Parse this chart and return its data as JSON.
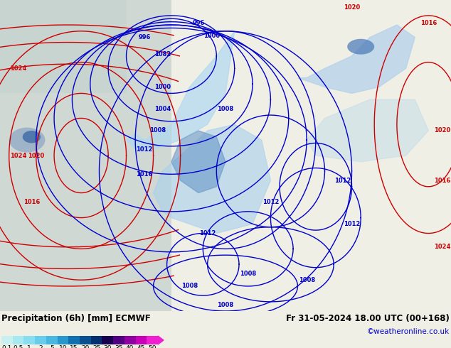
{
  "title_left": "Precipitation (6h) [mm] ECMWF",
  "title_right": "Fr 31-05-2024 18.00 UTC (00+168)",
  "credit": "©weatheronline.co.uk",
  "colorbar_tick_labels": [
    "0.1",
    "0.5",
    "1",
    "2",
    "5",
    "10",
    "15",
    "20",
    "25",
    "30",
    "35",
    "40",
    "45",
    "50"
  ],
  "colorbar_colors": [
    "#c8f0f0",
    "#a8e8f0",
    "#88ddf0",
    "#68ccec",
    "#48b8e0",
    "#2898cc",
    "#1070b0",
    "#085090",
    "#003070",
    "#180050",
    "#500080",
    "#9000a0",
    "#c800b8",
    "#f020d0"
  ],
  "triangle_color": "#f020d0",
  "bg_color": "#f0efe6",
  "map_ocean_color": "#c8dce0",
  "map_land_color": "#b8d4b0",
  "map_left_color": "#d0d8d0",
  "text_color": "#000000",
  "credit_color": "#0000cc",
  "fig_width": 6.34,
  "fig_height": 4.9,
  "dpi": 100
}
